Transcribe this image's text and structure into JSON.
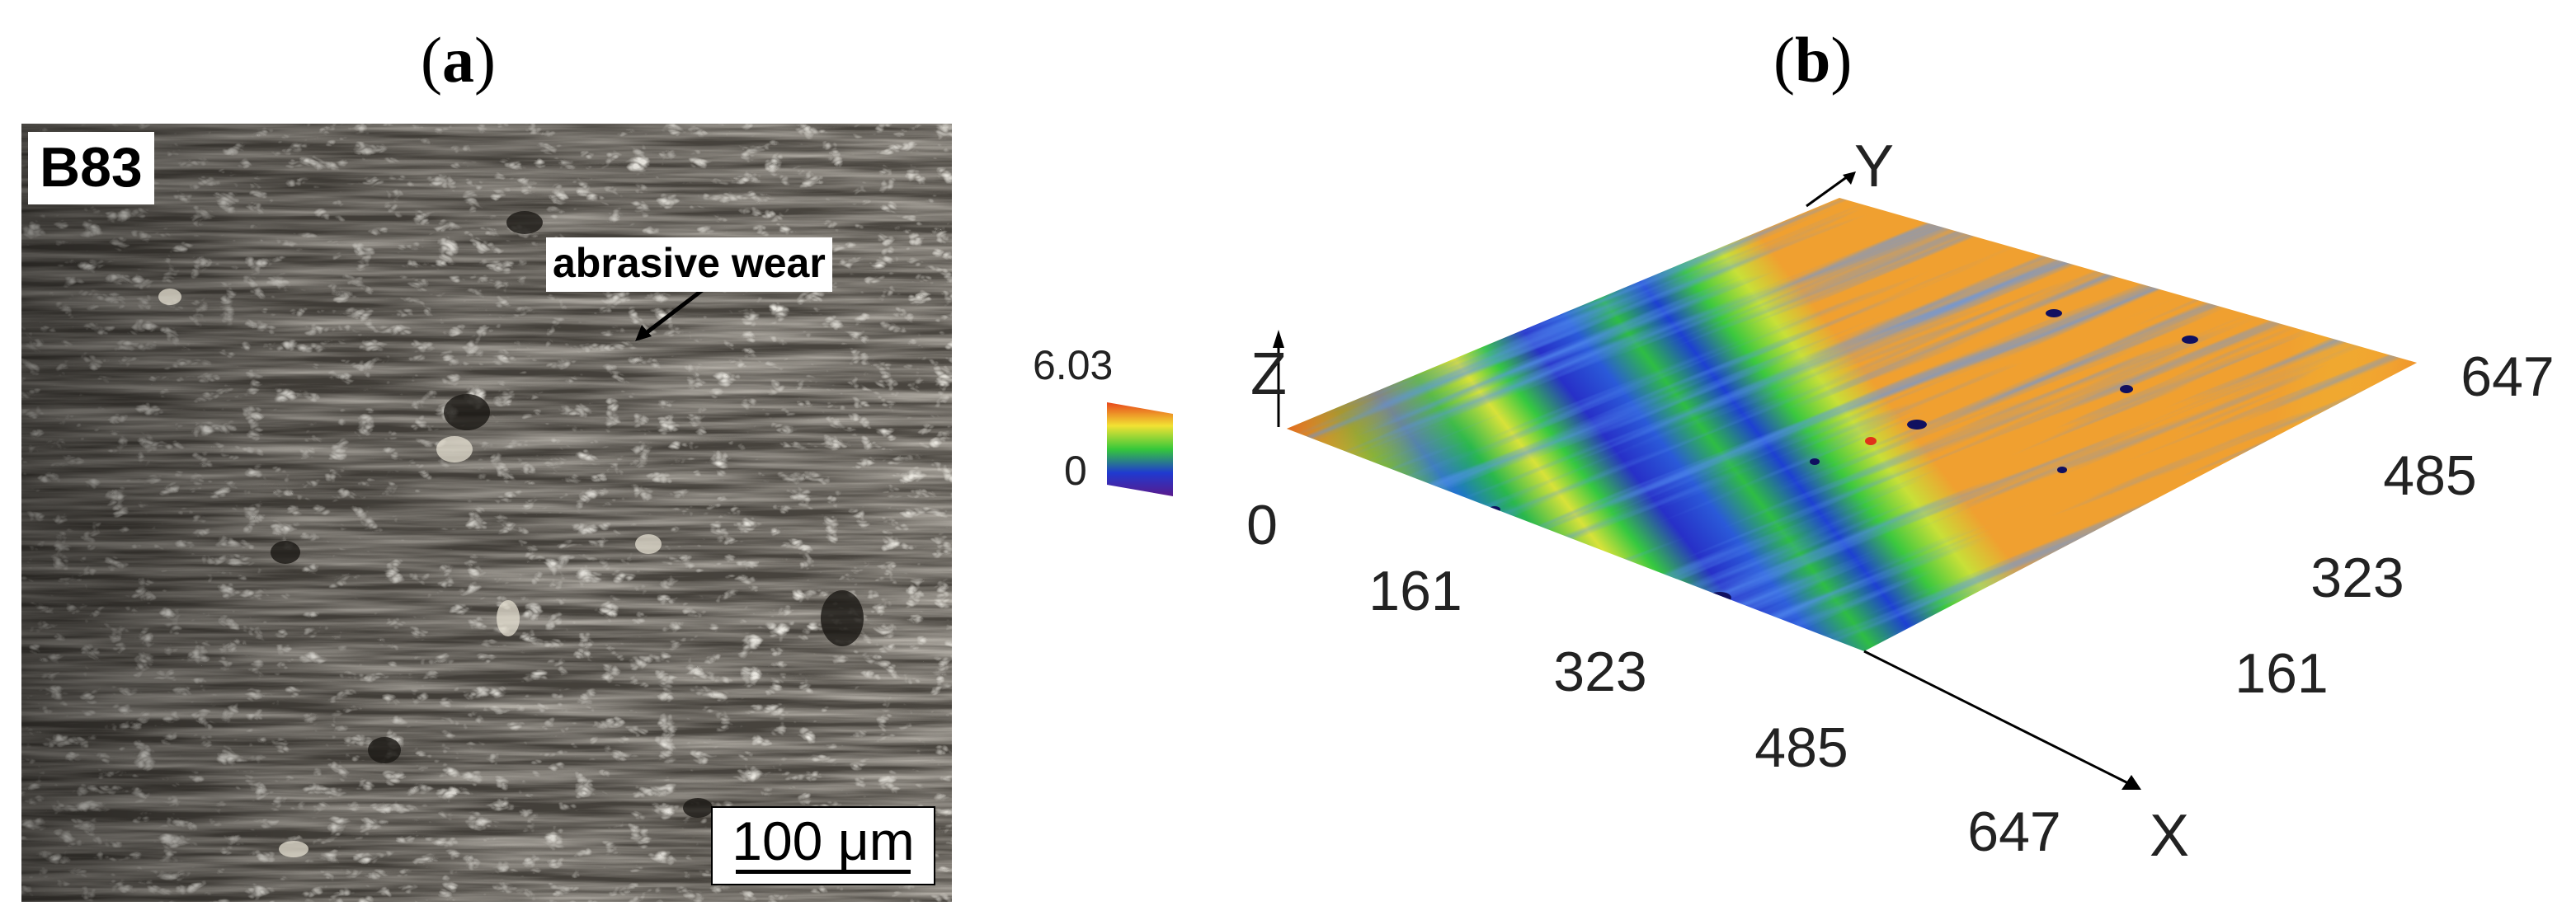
{
  "panels": {
    "a": {
      "label_open": "(",
      "label_letter": "a",
      "label_close": ")"
    },
    "b": {
      "label_open": "(",
      "label_letter": "b",
      "label_close": ")"
    }
  },
  "micrograph": {
    "sample": "B83",
    "annotation": "abrasive wear",
    "scale_bar": "100 μm"
  },
  "surface_plot": {
    "colorbar": {
      "max": "6.03",
      "min": "0"
    },
    "axes": {
      "x": {
        "label": "X",
        "ticks": [
          "0",
          "161",
          "323",
          "485",
          "647"
        ]
      },
      "y": {
        "label": "Y",
        "ticks": [
          "161",
          "323",
          "485",
          "647"
        ]
      },
      "z": {
        "label": "Z"
      }
    },
    "colors": {
      "low": "#1f1fd0",
      "mid": "#35c83a",
      "high": "#e8581d",
      "peak": "#f4ec1a"
    }
  }
}
